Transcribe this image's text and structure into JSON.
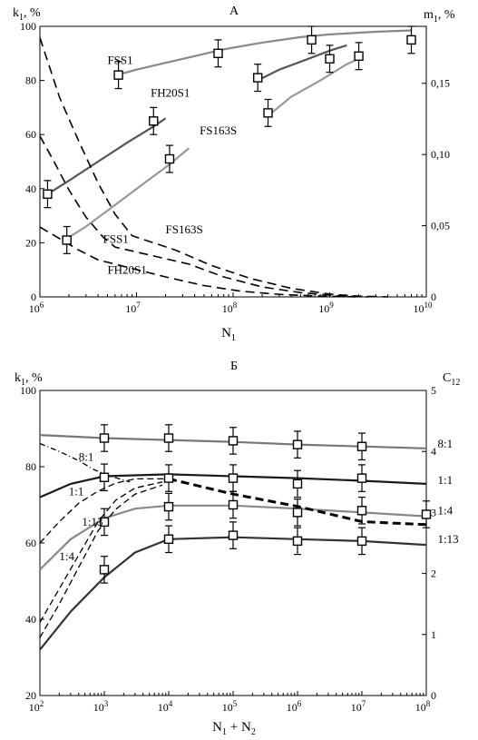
{
  "chart_data": [
    {
      "panel": "А",
      "type": "line",
      "xlabel": "N",
      "xlabel_sub": "1",
      "ylabel_left": "k",
      "ylabel_left_sub": "1",
      "ylabel_left_unit": ", %",
      "ylabel_right": "m",
      "ylabel_right_sub": "1",
      "ylabel_right_unit": ", %",
      "xscale": "log",
      "xlim": [
        1000000,
        10000000000
      ],
      "x_ticks": [
        {
          "value": 1000000,
          "mant": "10",
          "exp": "6"
        },
        {
          "value": 10000000,
          "mant": "10",
          "exp": "7"
        },
        {
          "value": 100000000,
          "mant": "10",
          "exp": "8"
        },
        {
          "value": 1000000000,
          "mant": "10",
          "exp": "9"
        },
        {
          "value": 10000000000,
          "mant": "10",
          "exp": "10"
        }
      ],
      "ylim_left": [
        0,
        100
      ],
      "y_ticks_left": [
        "0",
        "20",
        "40",
        "60",
        "80",
        "100"
      ],
      "ylim_right": [
        0,
        0.19
      ],
      "y_ticks_right": [
        {
          "value": 0,
          "label": "0"
        },
        {
          "value": 0.05,
          "label": "0,05"
        },
        {
          "value": 0.1,
          "label": "0,10"
        },
        {
          "value": 0.15,
          "label": "0,15"
        }
      ],
      "grid": false,
      "k_series": [
        {
          "name": "FSS1",
          "color": "#888888",
          "line": [
            [
              6300000,
              82
            ],
            [
              10000000,
              84
            ],
            [
              20000000,
              86.5
            ],
            [
              40000000,
              89
            ],
            [
              80000000,
              91.5
            ],
            [
              200000000,
              94
            ],
            [
              500000000,
              96
            ],
            [
              1000000000,
              97
            ],
            [
              3000000000,
              98
            ],
            [
              7000000000,
              98.5
            ]
          ],
          "points": [
            [
              6500000,
              82
            ],
            [
              70000000,
              90
            ],
            [
              650000000,
              95
            ],
            [
              7000000000,
              95
            ]
          ],
          "errors": [
            5,
            5,
            5,
            5
          ]
        },
        {
          "name": "FH20S1",
          "color": "#555555",
          "line": [
            [
              1200000,
              38
            ],
            [
              2000000,
              43
            ],
            [
              4000000,
              50
            ],
            [
              8000000,
              57
            ],
            [
              15000000,
              63
            ],
            [
              20000000,
              66
            ]
          ],
          "line2": [
            [
              180000000,
              80
            ],
            [
              300000000,
              84
            ],
            [
              600000000,
              88
            ],
            [
              1000000000,
              91
            ],
            [
              1500000000,
              93
            ]
          ],
          "points": [
            [
              1200000,
              38
            ],
            [
              15000000,
              65
            ],
            [
              180000000,
              81
            ],
            [
              1000000000,
              88
            ]
          ],
          "errors": [
            5,
            5,
            5,
            5
          ]
        },
        {
          "name": "FS163S",
          "color": "#999999",
          "line": [
            [
              1800000,
              21
            ],
            [
              3000000,
              26
            ],
            [
              6000000,
              34
            ],
            [
              12000000,
              42
            ],
            [
              22000000,
              49
            ],
            [
              35000000,
              55
            ]
          ],
          "line2": [
            [
              250000000,
              68
            ],
            [
              400000000,
              74
            ],
            [
              800000000,
              80
            ],
            [
              1500000000,
              86
            ],
            [
              2000000000,
              88
            ]
          ],
          "points": [
            [
              1900000,
              21
            ],
            [
              22000000,
              51
            ],
            [
              230000000,
              68
            ],
            [
              2000000000,
              89
            ]
          ],
          "errors": [
            5,
            5,
            5,
            5
          ]
        }
      ],
      "m_series": [
        {
          "name": "FSS1",
          "label": "FSS1",
          "points": [
            [
              1000000,
              0.182
            ],
            [
              1600000,
              0.14
            ],
            [
              2500000,
              0.11
            ],
            [
              4000000,
              0.08
            ],
            [
              6000000,
              0.058
            ],
            [
              9000000,
              0.043
            ],
            [
              25000000,
              0.033
            ],
            [
              60000000,
              0.022
            ],
            [
              150000000,
              0.013
            ],
            [
              400000000,
              0.006
            ],
            [
              1000000000,
              0.002
            ],
            [
              2000000000,
              0.0005
            ],
            [
              4000000000,
              0
            ]
          ]
        },
        {
          "name": "FS163S",
          "label": "FS163S",
          "points": [
            [
              1000000,
              0.113
            ],
            [
              1400000,
              0.095
            ],
            [
              2000000,
              0.075
            ],
            [
              3000000,
              0.056
            ],
            [
              4500000,
              0.042
            ],
            [
              6000000,
              0.035
            ],
            [
              35000000,
              0.023
            ],
            [
              80000000,
              0.014
            ],
            [
              200000000,
              0.007
            ],
            [
              500000000,
              0.003
            ],
            [
              1200000000,
              0.0008
            ],
            [
              2500000000,
              0
            ]
          ]
        },
        {
          "name": "FH20S1",
          "label": "FH20S1",
          "points": [
            [
              1000000,
              0.049
            ],
            [
              1500000,
              0.042
            ],
            [
              2500000,
              0.033
            ],
            [
              4000000,
              0.026
            ],
            [
              20000000,
              0.014
            ],
            [
              50000000,
              0.008
            ],
            [
              120000000,
              0.004
            ],
            [
              300000000,
              0.0018
            ],
            [
              800000000,
              0.0006
            ],
            [
              2000000000,
              0
            ]
          ]
        }
      ],
      "labels": [
        {
          "text": "FSS1",
          "x": 5000000,
          "y": 86,
          "axis": "left"
        },
        {
          "text": "FH20S1",
          "x": 14000000,
          "y": 74,
          "axis": "left"
        },
        {
          "text": "FS163S",
          "x": 45000000,
          "y": 60,
          "axis": "left"
        },
        {
          "text": "FSS1",
          "x": 4500000,
          "y": 20,
          "axis": "left"
        },
        {
          "text": "FS163S",
          "x": 20000000,
          "y": 23.5,
          "axis": "left"
        },
        {
          "text": "FH20S1",
          "x": 5000000,
          "y": 8.5,
          "axis": "left"
        }
      ]
    },
    {
      "panel": "Б",
      "type": "line",
      "xlabel": "N",
      "xlabel_sub1": "1",
      "xlabel_plus": " + N",
      "xlabel_sub2": "2",
      "ylabel_left": "k",
      "ylabel_left_sub": "1",
      "ylabel_left_unit": ", %",
      "ylabel_right": "C",
      "ylabel_right_sub": "12",
      "xscale": "log",
      "xlim": [
        100,
        100000000
      ],
      "x_ticks": [
        {
          "value": 100,
          "mant": "10",
          "exp": "2"
        },
        {
          "value": 1000,
          "mant": "10",
          "exp": "3"
        },
        {
          "value": 10000,
          "mant": "10",
          "exp": "4"
        },
        {
          "value": 100000,
          "mant": "10",
          "exp": "5"
        },
        {
          "value": 1000000,
          "mant": "10",
          "exp": "6"
        },
        {
          "value": 10000000,
          "mant": "10",
          "exp": "7"
        },
        {
          "value": 100000000,
          "mant": "10",
          "exp": "8"
        }
      ],
      "ylim_left": [
        20,
        100
      ],
      "y_ticks_left": [
        "20",
        "40",
        "60",
        "80",
        "100"
      ],
      "ylim_right": [
        0,
        5
      ],
      "y_ticks_right": [
        "0",
        "1",
        "2",
        "3",
        "4",
        "5"
      ],
      "grid": false,
      "k_series": [
        {
          "name": "8:1",
          "color": "#777777",
          "line": [
            [
              100,
              88.3
            ],
            [
              1000,
              87.5
            ],
            [
              10000,
              87
            ],
            [
              100000,
              86.5
            ],
            [
              1000000,
              85.8
            ],
            [
              10000000,
              85.3
            ],
            [
              100000000,
              84.8
            ]
          ],
          "points": [
            [
              1000,
              87.5
            ],
            [
              10000,
              87.5
            ],
            [
              100000,
              86.8
            ],
            [
              1000000,
              85.8
            ],
            [
              10000000,
              85.3
            ]
          ],
          "errors": [
            3.5,
            3.5,
            3.5,
            3.5,
            3.5
          ]
        },
        {
          "name": "1:1",
          "color": "#1a1a1a",
          "line": [
            [
              100,
              72
            ],
            [
              300,
              75.5
            ],
            [
              1000,
              77.5
            ],
            [
              10000,
              78
            ],
            [
              100000,
              77.5
            ],
            [
              1000000,
              77
            ],
            [
              10000000,
              76.3
            ],
            [
              100000000,
              75.5
            ]
          ],
          "points": [
            [
              1000,
              77.2
            ],
            [
              10000,
              77
            ],
            [
              100000,
              77
            ],
            [
              1000000,
              75.5
            ],
            [
              10000000,
              77
            ]
          ],
          "errors": [
            3.5,
            3.5,
            3.5,
            3.5,
            3.5
          ]
        },
        {
          "name": "1:4",
          "color": "#888888",
          "line": [
            [
              100,
              53
            ],
            [
              300,
              61
            ],
            [
              1000,
              66.5
            ],
            [
              3000,
              69
            ],
            [
              10000,
              69.8
            ],
            [
              100000,
              69.8
            ],
            [
              1000000,
              69
            ],
            [
              10000000,
              68
            ],
            [
              100000000,
              67
            ]
          ],
          "points": [
            [
              1000,
              65.5
            ],
            [
              10000,
              69.5
            ],
            [
              100000,
              70
            ],
            [
              1000000,
              68
            ],
            [
              10000000,
              68.5
            ],
            [
              100000000,
              67.5
            ]
          ],
          "errors": [
            3.5,
            3.5,
            3.5,
            3.5,
            3.5,
            3.5
          ]
        },
        {
          "name": "1:13",
          "color": "#333333",
          "line": [
            [
              100,
              32
            ],
            [
              300,
              42
            ],
            [
              1000,
              51
            ],
            [
              3000,
              57.5
            ],
            [
              10000,
              61
            ],
            [
              100000,
              61.5
            ],
            [
              1000000,
              61
            ],
            [
              10000000,
              60.5
            ],
            [
              100000000,
              59.5
            ]
          ],
          "points": [
            [
              1000,
              53
            ],
            [
              10000,
              61
            ],
            [
              100000,
              62
            ],
            [
              1000000,
              60.5
            ],
            [
              10000000,
              60.5
            ]
          ],
          "errors": [
            3.5,
            3.5,
            3.5,
            3.5,
            3.5
          ]
        }
      ],
      "c_series": [
        {
          "name": "8:1",
          "label": "8:1",
          "points": [
            [
              100,
              4.13
            ],
            [
              200,
              4.0
            ],
            [
              400,
              3.85
            ],
            [
              700,
              3.7
            ],
            [
              1200,
              3.6
            ],
            [
              2500,
              3.5
            ]
          ]
        },
        {
          "name": "1:1",
          "label": "1:1",
          "points": [
            [
              100,
              2.5
            ],
            [
              200,
              2.85
            ],
            [
              400,
              3.15
            ],
            [
              800,
              3.35
            ],
            [
              1500,
              3.48
            ],
            [
              3000,
              3.55
            ],
            [
              10000,
              3.55
            ]
          ]
        },
        {
          "name": "1:4",
          "label": "1:4",
          "points": [
            [
              100,
              1.2
            ],
            [
              200,
              1.75
            ],
            [
              400,
              2.3
            ],
            [
              800,
              2.85
            ],
            [
              1500,
              3.2
            ],
            [
              3000,
              3.4
            ],
            [
              8000,
              3.5
            ]
          ]
        },
        {
          "name": "1:13",
          "label": "1:13",
          "points": [
            [
              100,
              0.95
            ],
            [
              200,
              1.5
            ],
            [
              400,
              2.1
            ],
            [
              800,
              2.7
            ],
            [
              1500,
              3.05
            ],
            [
              3000,
              3.3
            ],
            [
              8000,
              3.45
            ]
          ]
        },
        {
          "name": "common",
          "label": "",
          "bold": true,
          "points": [
            [
              10000,
              3.55
            ],
            [
              100000,
              3.3
            ],
            [
              1000000,
              3.1
            ],
            [
              10000000,
              2.85
            ],
            [
              100000000,
              2.8
            ]
          ]
        }
      ],
      "labels": [
        {
          "text": "8:1",
          "x": 400,
          "y": 81.5
        },
        {
          "text": "1:1",
          "x": 280,
          "y": 72.5
        },
        {
          "text": "1:13",
          "x": 450,
          "y": 64.5
        },
        {
          "text": "1:4",
          "x": 200,
          "y": 55.5
        },
        {
          "text": "8:1",
          "x": 150000000,
          "y": 85
        },
        {
          "text": "1:1",
          "x": 150000000,
          "y": 75.5
        },
        {
          "text": "1:4",
          "x": 150000000,
          "y": 67.5
        },
        {
          "text": "1:13",
          "x": 150000000,
          "y": 60
        }
      ]
    }
  ]
}
